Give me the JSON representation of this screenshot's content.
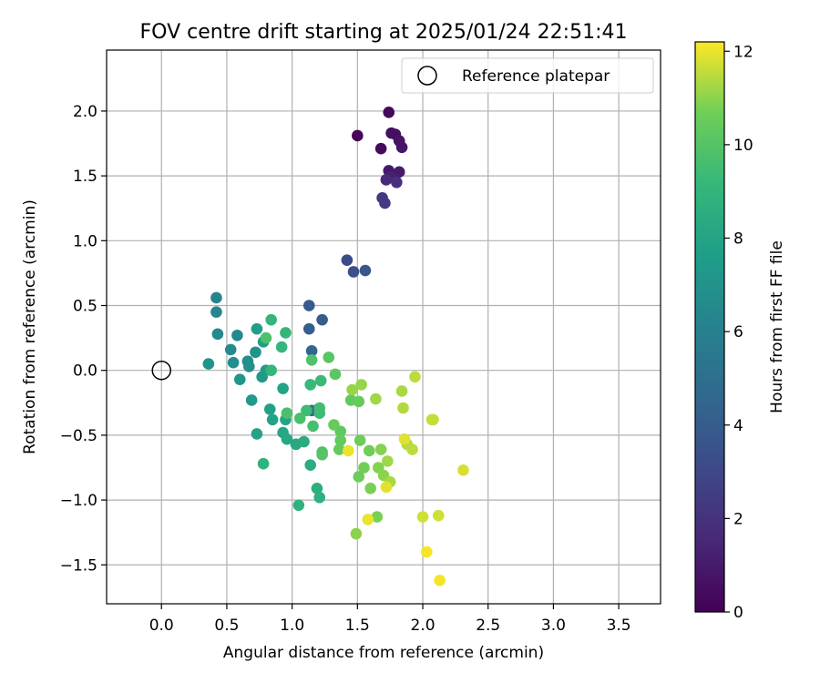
{
  "chart_data": {
    "type": "scatter",
    "title": "FOV centre drift starting at 2025/01/24 22:51:41",
    "xlabel": "Angular distance from reference (arcmin)",
    "ylabel": "Rotation from reference (arcmin)",
    "xlim": [
      -0.42,
      3.82
    ],
    "ylim": [
      -1.8,
      2.47
    ],
    "xticks": [
      0.0,
      0.5,
      1.0,
      1.5,
      2.0,
      2.5,
      3.0,
      3.5
    ],
    "xtick_labels": [
      "0.0",
      "0.5",
      "1.0",
      "1.5",
      "2.0",
      "2.5",
      "3.0",
      "3.5"
    ],
    "yticks": [
      -1.5,
      -1.0,
      -0.5,
      0.0,
      0.5,
      1.0,
      1.5,
      2.0
    ],
    "ytick_labels": [
      "−1.5",
      "−1.0",
      "−0.5",
      "0.0",
      "0.5",
      "1.0",
      "1.5",
      "2.0"
    ],
    "grid": true,
    "legend": {
      "position": "top-right",
      "label": "Reference platepar",
      "marker": "open-circle"
    },
    "reference_point": {
      "x": 0.0,
      "y": 0.0,
      "label": "Reference platepar"
    },
    "colorbar": {
      "label": "Hours from first FF file",
      "min": 0,
      "max": 12.2,
      "ticks": [
        0,
        2,
        4,
        6,
        8,
        10,
        12
      ],
      "tick_labels": [
        "0",
        "2",
        "4",
        "6",
        "8",
        "10",
        "12"
      ],
      "colormap": "viridis"
    },
    "points": [
      {
        "x": 1.5,
        "y": 1.81,
        "c": 0.2
      },
      {
        "x": 1.74,
        "y": 1.99,
        "c": 0.3
      },
      {
        "x": 1.68,
        "y": 1.71,
        "c": 0.4
      },
      {
        "x": 1.76,
        "y": 1.83,
        "c": 0.5
      },
      {
        "x": 1.79,
        "y": 1.82,
        "c": 0.6
      },
      {
        "x": 1.82,
        "y": 1.77,
        "c": 0.7
      },
      {
        "x": 1.84,
        "y": 1.72,
        "c": 0.8
      },
      {
        "x": 1.74,
        "y": 1.54,
        "c": 0.9
      },
      {
        "x": 1.82,
        "y": 1.53,
        "c": 1.0
      },
      {
        "x": 1.75,
        "y": 1.49,
        "c": 1.2
      },
      {
        "x": 1.72,
        "y": 1.47,
        "c": 1.6
      },
      {
        "x": 1.8,
        "y": 1.45,
        "c": 1.9
      },
      {
        "x": 1.69,
        "y": 1.33,
        "c": 2.2
      },
      {
        "x": 1.71,
        "y": 1.29,
        "c": 2.4
      },
      {
        "x": 1.42,
        "y": 0.85,
        "c": 3.2
      },
      {
        "x": 1.47,
        "y": 0.76,
        "c": 3.4
      },
      {
        "x": 1.56,
        "y": 0.77,
        "c": 3.7
      },
      {
        "x": 1.13,
        "y": 0.5,
        "c": 3.9
      },
      {
        "x": 1.23,
        "y": 0.39,
        "c": 4.0
      },
      {
        "x": 1.13,
        "y": 0.32,
        "c": 4.2
      },
      {
        "x": 1.15,
        "y": 0.15,
        "c": 4.5
      },
      {
        "x": 1.15,
        "y": -0.31,
        "c": 4.6
      },
      {
        "x": 1.2,
        "y": -0.3,
        "c": 5.2
      },
      {
        "x": 0.42,
        "y": 0.56,
        "c": 6.2
      },
      {
        "x": 0.42,
        "y": 0.45,
        "c": 6.3
      },
      {
        "x": 0.43,
        "y": 0.28,
        "c": 6.4
      },
      {
        "x": 0.58,
        "y": 0.27,
        "c": 6.5
      },
      {
        "x": 0.53,
        "y": 0.16,
        "c": 6.6
      },
      {
        "x": 0.66,
        "y": 0.07,
        "c": 6.7
      },
      {
        "x": 0.55,
        "y": 0.06,
        "c": 6.8
      },
      {
        "x": 0.67,
        "y": 0.03,
        "c": 6.9
      },
      {
        "x": 0.72,
        "y": 0.14,
        "c": 7.0
      },
      {
        "x": 0.36,
        "y": 0.05,
        "c": 7.1
      },
      {
        "x": 0.6,
        "y": -0.07,
        "c": 7.2
      },
      {
        "x": 0.77,
        "y": -0.05,
        "c": 7.3
      },
      {
        "x": 0.69,
        "y": -0.23,
        "c": 7.4
      },
      {
        "x": 0.8,
        "y": 0.0,
        "c": 7.5
      },
      {
        "x": 0.73,
        "y": 0.32,
        "c": 7.6
      },
      {
        "x": 0.78,
        "y": 0.22,
        "c": 7.7
      },
      {
        "x": 0.83,
        "y": -0.3,
        "c": 7.8
      },
      {
        "x": 0.85,
        "y": -0.38,
        "c": 7.9
      },
      {
        "x": 0.73,
        "y": -0.49,
        "c": 7.9
      },
      {
        "x": 0.93,
        "y": -0.14,
        "c": 8.0
      },
      {
        "x": 0.95,
        "y": -0.38,
        "c": 8.0
      },
      {
        "x": 0.93,
        "y": -0.48,
        "c": 8.1
      },
      {
        "x": 0.96,
        "y": -0.53,
        "c": 8.2
      },
      {
        "x": 1.03,
        "y": -0.57,
        "c": 8.3
      },
      {
        "x": 1.09,
        "y": -0.55,
        "c": 8.4
      },
      {
        "x": 1.14,
        "y": -0.73,
        "c": 8.5
      },
      {
        "x": 1.19,
        "y": -0.91,
        "c": 8.6
      },
      {
        "x": 1.21,
        "y": -0.98,
        "c": 8.7
      },
      {
        "x": 1.05,
        "y": -1.04,
        "c": 8.8
      },
      {
        "x": 0.78,
        "y": -0.72,
        "c": 8.9
      },
      {
        "x": 0.92,
        "y": 0.18,
        "c": 9.0
      },
      {
        "x": 0.84,
        "y": 0.39,
        "c": 9.0
      },
      {
        "x": 0.95,
        "y": 0.29,
        "c": 9.1
      },
      {
        "x": 0.84,
        "y": 0.0,
        "c": 9.1
      },
      {
        "x": 1.14,
        "y": -0.11,
        "c": 9.2
      },
      {
        "x": 1.22,
        "y": -0.08,
        "c": 9.3
      },
      {
        "x": 1.11,
        "y": -0.31,
        "c": 9.4
      },
      {
        "x": 1.21,
        "y": -0.33,
        "c": 9.4
      },
      {
        "x": 1.21,
        "y": -0.29,
        "c": 9.5
      },
      {
        "x": 1.16,
        "y": -0.43,
        "c": 9.6
      },
      {
        "x": 1.06,
        "y": -0.37,
        "c": 9.7
      },
      {
        "x": 0.96,
        "y": -0.33,
        "c": 9.7
      },
      {
        "x": 0.8,
        "y": 0.25,
        "c": 9.8
      },
      {
        "x": 1.15,
        "y": 0.08,
        "c": 9.8
      },
      {
        "x": 1.23,
        "y": -0.63,
        "c": 9.9
      },
      {
        "x": 1.23,
        "y": -0.65,
        "c": 10.0
      },
      {
        "x": 1.28,
        "y": 0.1,
        "c": 10.1
      },
      {
        "x": 1.33,
        "y": -0.03,
        "c": 10.2
      },
      {
        "x": 1.45,
        "y": -0.23,
        "c": 10.3
      },
      {
        "x": 1.37,
        "y": -0.47,
        "c": 10.3
      },
      {
        "x": 1.37,
        "y": -0.54,
        "c": 10.4
      },
      {
        "x": 1.36,
        "y": -0.61,
        "c": 10.4
      },
      {
        "x": 1.32,
        "y": -0.42,
        "c": 10.5
      },
      {
        "x": 1.51,
        "y": -0.24,
        "c": 10.5
      },
      {
        "x": 1.51,
        "y": -0.82,
        "c": 10.6
      },
      {
        "x": 1.52,
        "y": -0.54,
        "c": 10.6
      },
      {
        "x": 1.55,
        "y": -0.75,
        "c": 10.7
      },
      {
        "x": 1.59,
        "y": -0.62,
        "c": 10.7
      },
      {
        "x": 1.6,
        "y": -0.91,
        "c": 10.8
      },
      {
        "x": 1.65,
        "y": -1.13,
        "c": 10.8
      },
      {
        "x": 1.66,
        "y": -0.75,
        "c": 10.9
      },
      {
        "x": 1.68,
        "y": -0.61,
        "c": 10.9
      },
      {
        "x": 1.7,
        "y": -0.81,
        "c": 11.0
      },
      {
        "x": 1.49,
        "y": -1.26,
        "c": 11.0
      },
      {
        "x": 1.46,
        "y": -0.15,
        "c": 11.1
      },
      {
        "x": 1.53,
        "y": -0.11,
        "c": 11.1
      },
      {
        "x": 1.64,
        "y": -0.22,
        "c": 11.2
      },
      {
        "x": 1.73,
        "y": -0.7,
        "c": 11.2
      },
      {
        "x": 1.75,
        "y": -0.86,
        "c": 11.3
      },
      {
        "x": 1.84,
        "y": -0.16,
        "c": 11.3
      },
      {
        "x": 1.85,
        "y": -0.29,
        "c": 11.4
      },
      {
        "x": 1.88,
        "y": -0.57,
        "c": 11.4
      },
      {
        "x": 1.92,
        "y": -0.61,
        "c": 11.5
      },
      {
        "x": 1.94,
        "y": -0.05,
        "c": 11.5
      },
      {
        "x": 2.07,
        "y": -0.38,
        "c": 11.6
      },
      {
        "x": 2.08,
        "y": -0.38,
        "c": 11.6
      },
      {
        "x": 2.0,
        "y": -1.13,
        "c": 11.7
      },
      {
        "x": 2.12,
        "y": -1.12,
        "c": 11.7
      },
      {
        "x": 2.31,
        "y": -0.77,
        "c": 11.8
      },
      {
        "x": 1.72,
        "y": -0.9,
        "c": 11.9
      },
      {
        "x": 1.86,
        "y": -0.53,
        "c": 11.9
      },
      {
        "x": 1.43,
        "y": -0.62,
        "c": 12.0
      },
      {
        "x": 1.58,
        "y": -1.15,
        "c": 12.0
      },
      {
        "x": 2.03,
        "y": -1.4,
        "c": 12.1
      },
      {
        "x": 2.13,
        "y": -1.62,
        "c": 12.1
      }
    ]
  }
}
